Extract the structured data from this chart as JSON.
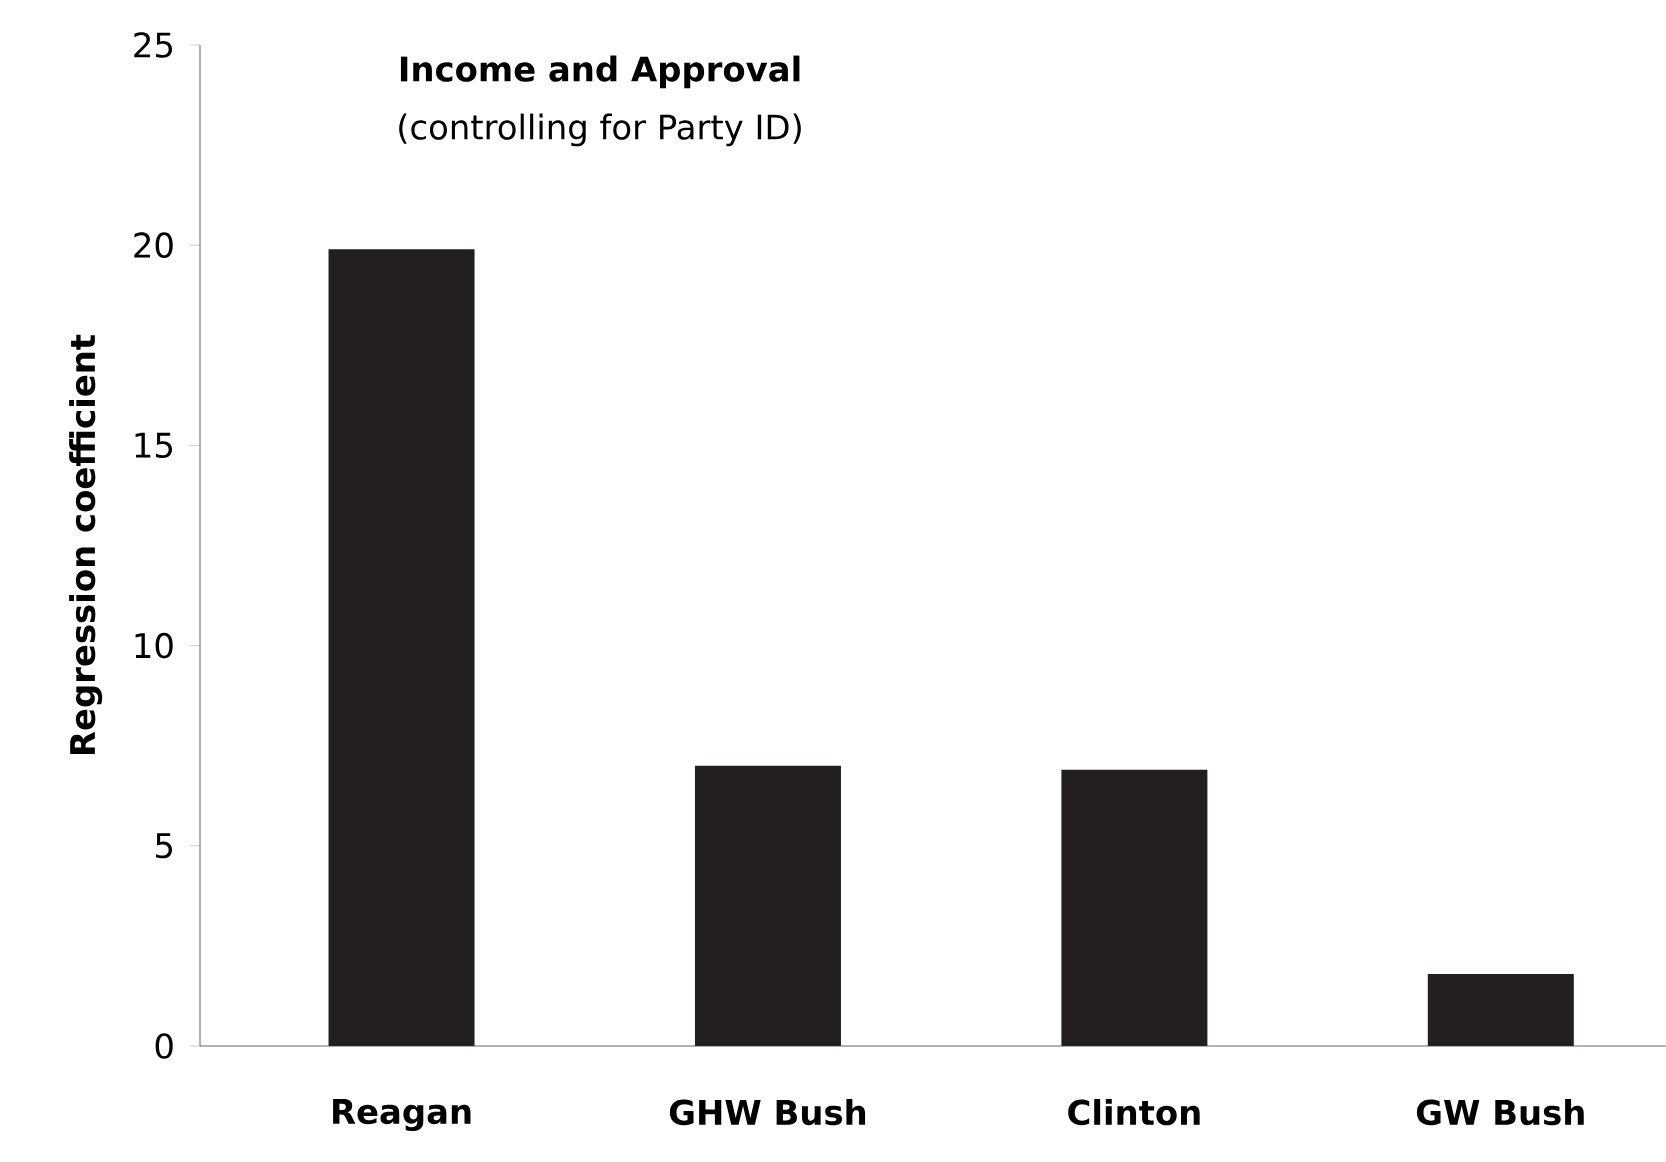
{
  "chart_data": {
    "type": "bar",
    "title": "Income and Approval",
    "subtitle": "(controlling for Party ID)",
    "ylabel": "Regression coefficient",
    "categories": [
      "Reagan",
      "GHW Bush",
      "Clinton",
      "GW Bush"
    ],
    "values": [
      19.9,
      7.0,
      6.9,
      1.8
    ],
    "color": "#231f20",
    "ylim": [
      0,
      25
    ],
    "yticks": [
      0,
      5,
      10,
      15,
      20,
      25
    ]
  }
}
